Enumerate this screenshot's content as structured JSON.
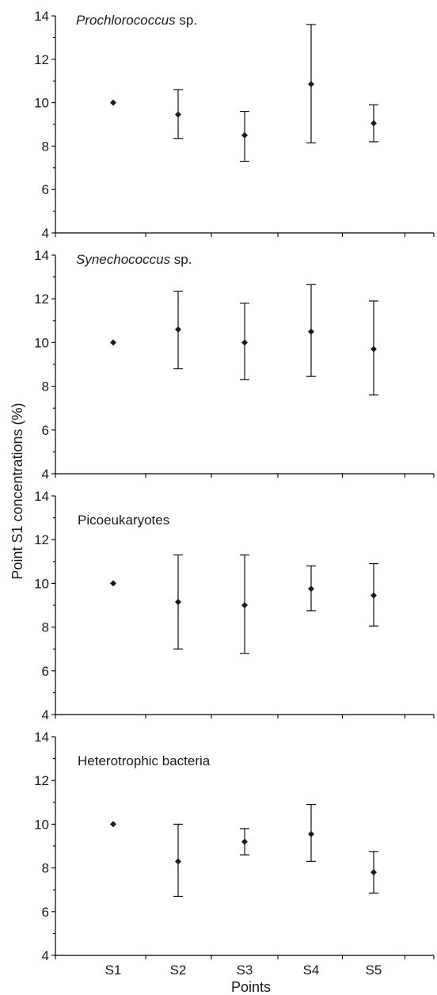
{
  "figure": {
    "ylabel": "Point S1 concentrations (%)",
    "xlabel": "Points"
  },
  "chart_data": [
    {
      "type": "scatter",
      "title": "Prochlorococcus sp.",
      "title_italic_part": "Prochlorococcus",
      "title_plain_part": " sp.",
      "categories": [
        "S1",
        "S2",
        "S3",
        "S4",
        "S5"
      ],
      "values": [
        10.0,
        9.45,
        8.5,
        10.85,
        9.05
      ],
      "error_low": [
        10.0,
        8.35,
        7.3,
        8.15,
        8.2
      ],
      "error_high": [
        10.0,
        10.6,
        9.6,
        13.6,
        9.9
      ],
      "ylim": [
        4,
        14
      ],
      "yticks": [
        "4",
        "6",
        "8",
        "10",
        "12",
        "14"
      ],
      "grid": false
    },
    {
      "type": "scatter",
      "title": "Synechococcus sp.",
      "title_italic_part": "Synechococcus",
      "title_plain_part": " sp.",
      "categories": [
        "S1",
        "S2",
        "S3",
        "S4",
        "S5"
      ],
      "values": [
        10.0,
        10.6,
        10.0,
        10.5,
        9.7
      ],
      "error_low": [
        10.0,
        8.8,
        8.3,
        8.45,
        7.6
      ],
      "error_high": [
        10.0,
        12.35,
        11.8,
        12.65,
        11.9
      ],
      "ylim": [
        4,
        14
      ],
      "yticks": [
        "4",
        "6",
        "8",
        "10",
        "12",
        "14"
      ],
      "grid": false
    },
    {
      "type": "scatter",
      "title": "Picoeukaryotes",
      "title_italic_part": "",
      "title_plain_part": "Picoeukaryotes",
      "categories": [
        "S1",
        "S2",
        "S3",
        "S4",
        "S5"
      ],
      "values": [
        10.0,
        9.15,
        9.0,
        9.75,
        9.45
      ],
      "error_low": [
        10.0,
        7.0,
        6.8,
        8.75,
        8.05
      ],
      "error_high": [
        10.0,
        11.3,
        11.3,
        10.8,
        10.9
      ],
      "ylim": [
        4,
        14
      ],
      "yticks": [
        "4",
        "6",
        "8",
        "10",
        "12",
        "14"
      ],
      "grid": false
    },
    {
      "type": "scatter",
      "title": "Heterotrophic bacteria",
      "title_italic_part": "",
      "title_plain_part": "Heterotrophic bacteria",
      "categories": [
        "S1",
        "S2",
        "S3",
        "S4",
        "S5"
      ],
      "values": [
        10.0,
        8.3,
        9.2,
        9.55,
        7.8
      ],
      "error_low": [
        10.0,
        6.7,
        8.6,
        8.3,
        6.85
      ],
      "error_high": [
        10.0,
        10.0,
        9.8,
        10.9,
        8.75
      ],
      "ylim": [
        4,
        14
      ],
      "yticks": [
        "4",
        "6",
        "8",
        "10",
        "12",
        "14"
      ],
      "grid": false
    }
  ]
}
